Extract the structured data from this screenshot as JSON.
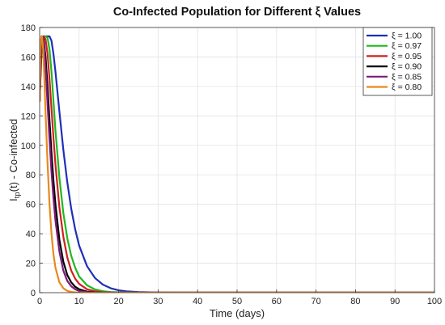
{
  "chart_data": {
    "type": "line",
    "title": "Co-Infected Population for Different ξ Values",
    "xlabel": "Time (days)",
    "ylabel_main": "I",
    "ylabel_sub": "tp",
    "ylabel_rest": "(t) - Co-infected",
    "xlim": [
      0,
      100
    ],
    "ylim": [
      0,
      180
    ],
    "xticks": [
      0,
      10,
      20,
      30,
      40,
      50,
      60,
      70,
      80,
      90,
      100
    ],
    "yticks": [
      0,
      20,
      40,
      60,
      80,
      100,
      120,
      140,
      160,
      180
    ],
    "grid": true,
    "legend_position": "top-right",
    "series": [
      {
        "name": "ξ = 1.00",
        "color": "#1f2fb8",
        "x": [
          0,
          0.5,
          1,
          1.5,
          2,
          2.5,
          3,
          3.5,
          4,
          5,
          6,
          7,
          8,
          9,
          10,
          12,
          14,
          16,
          18,
          20,
          22,
          25,
          30,
          35,
          40,
          50,
          60,
          80,
          100
        ],
        "y": [
          130,
          165,
          174,
          174,
          174,
          174,
          171,
          162,
          150,
          123,
          97,
          75,
          57,
          43,
          32,
          18,
          10,
          5.5,
          3,
          1.6,
          0.9,
          0.4,
          0.1,
          0,
          0,
          0,
          0,
          0,
          0
        ]
      },
      {
        "name": "ξ = 0.97",
        "color": "#1fb81f",
        "x": [
          0,
          0.5,
          1,
          1.5,
          2,
          2.5,
          3,
          3.5,
          4,
          5,
          6,
          7,
          8,
          9,
          10,
          12,
          14,
          16,
          18,
          20,
          25,
          30,
          40,
          60,
          100
        ],
        "y": [
          130,
          172,
          174,
          174,
          173,
          165,
          150,
          130,
          110,
          78,
          54,
          37,
          25,
          17,
          11,
          5,
          2.2,
          1,
          0.4,
          0.2,
          0,
          0,
          0,
          0,
          0
        ]
      },
      {
        "name": "ξ = 0.95",
        "color": "#d11f1f",
        "x": [
          0,
          0.5,
          1,
          1.5,
          2,
          2.5,
          3,
          3.5,
          4,
          5,
          6,
          7,
          8,
          9,
          10,
          12,
          14,
          16,
          18,
          20,
          25,
          30,
          40,
          60,
          100
        ],
        "y": [
          130,
          173,
          174,
          172,
          162,
          145,
          125,
          105,
          87,
          58,
          38,
          24,
          15,
          9.5,
          6,
          2.3,
          0.9,
          0.3,
          0.1,
          0,
          0,
          0,
          0,
          0,
          0
        ]
      },
      {
        "name": "ξ = 0.90",
        "color": "#000000",
        "x": [
          0,
          0.5,
          1,
          1.5,
          2,
          2.5,
          3,
          3.5,
          4,
          5,
          6,
          7,
          8,
          9,
          10,
          12,
          14,
          16,
          20,
          25,
          30,
          40,
          60,
          100
        ],
        "y": [
          130,
          174,
          172,
          160,
          140,
          117,
          95,
          76,
          60,
          36,
          21,
          12,
          7,
          4,
          2.3,
          0.7,
          0.2,
          0.1,
          0,
          0,
          0,
          0,
          0,
          0
        ]
      },
      {
        "name": "ξ = 0.85",
        "color": "#7a1a7a",
        "x": [
          0,
          0.4,
          0.8,
          1.2,
          1.6,
          2,
          2.5,
          3,
          3.5,
          4,
          5,
          6,
          7,
          8,
          9,
          10,
          12,
          14,
          20,
          25,
          30,
          40,
          60,
          100
        ],
        "y": [
          130,
          170,
          174,
          165,
          148,
          128,
          104,
          82,
          64,
          49,
          28,
          15,
          8,
          4.3,
          2.3,
          1.2,
          0.3,
          0.1,
          0,
          0,
          0,
          0,
          0,
          0
        ]
      },
      {
        "name": "ξ = 0.80",
        "color": "#e8891c",
        "x": [
          0,
          0.3,
          0.6,
          0.9,
          1.2,
          1.5,
          2,
          2.5,
          3,
          3.5,
          4,
          5,
          6,
          7,
          8,
          9,
          10,
          12,
          15,
          20,
          30,
          40,
          60,
          100
        ],
        "y": [
          130,
          172,
          174,
          165,
          145,
          122,
          88,
          60,
          40,
          26,
          17,
          7,
          3,
          1.2,
          0.5,
          0.2,
          0.1,
          0,
          0,
          0,
          0,
          0,
          0,
          0
        ]
      }
    ]
  }
}
